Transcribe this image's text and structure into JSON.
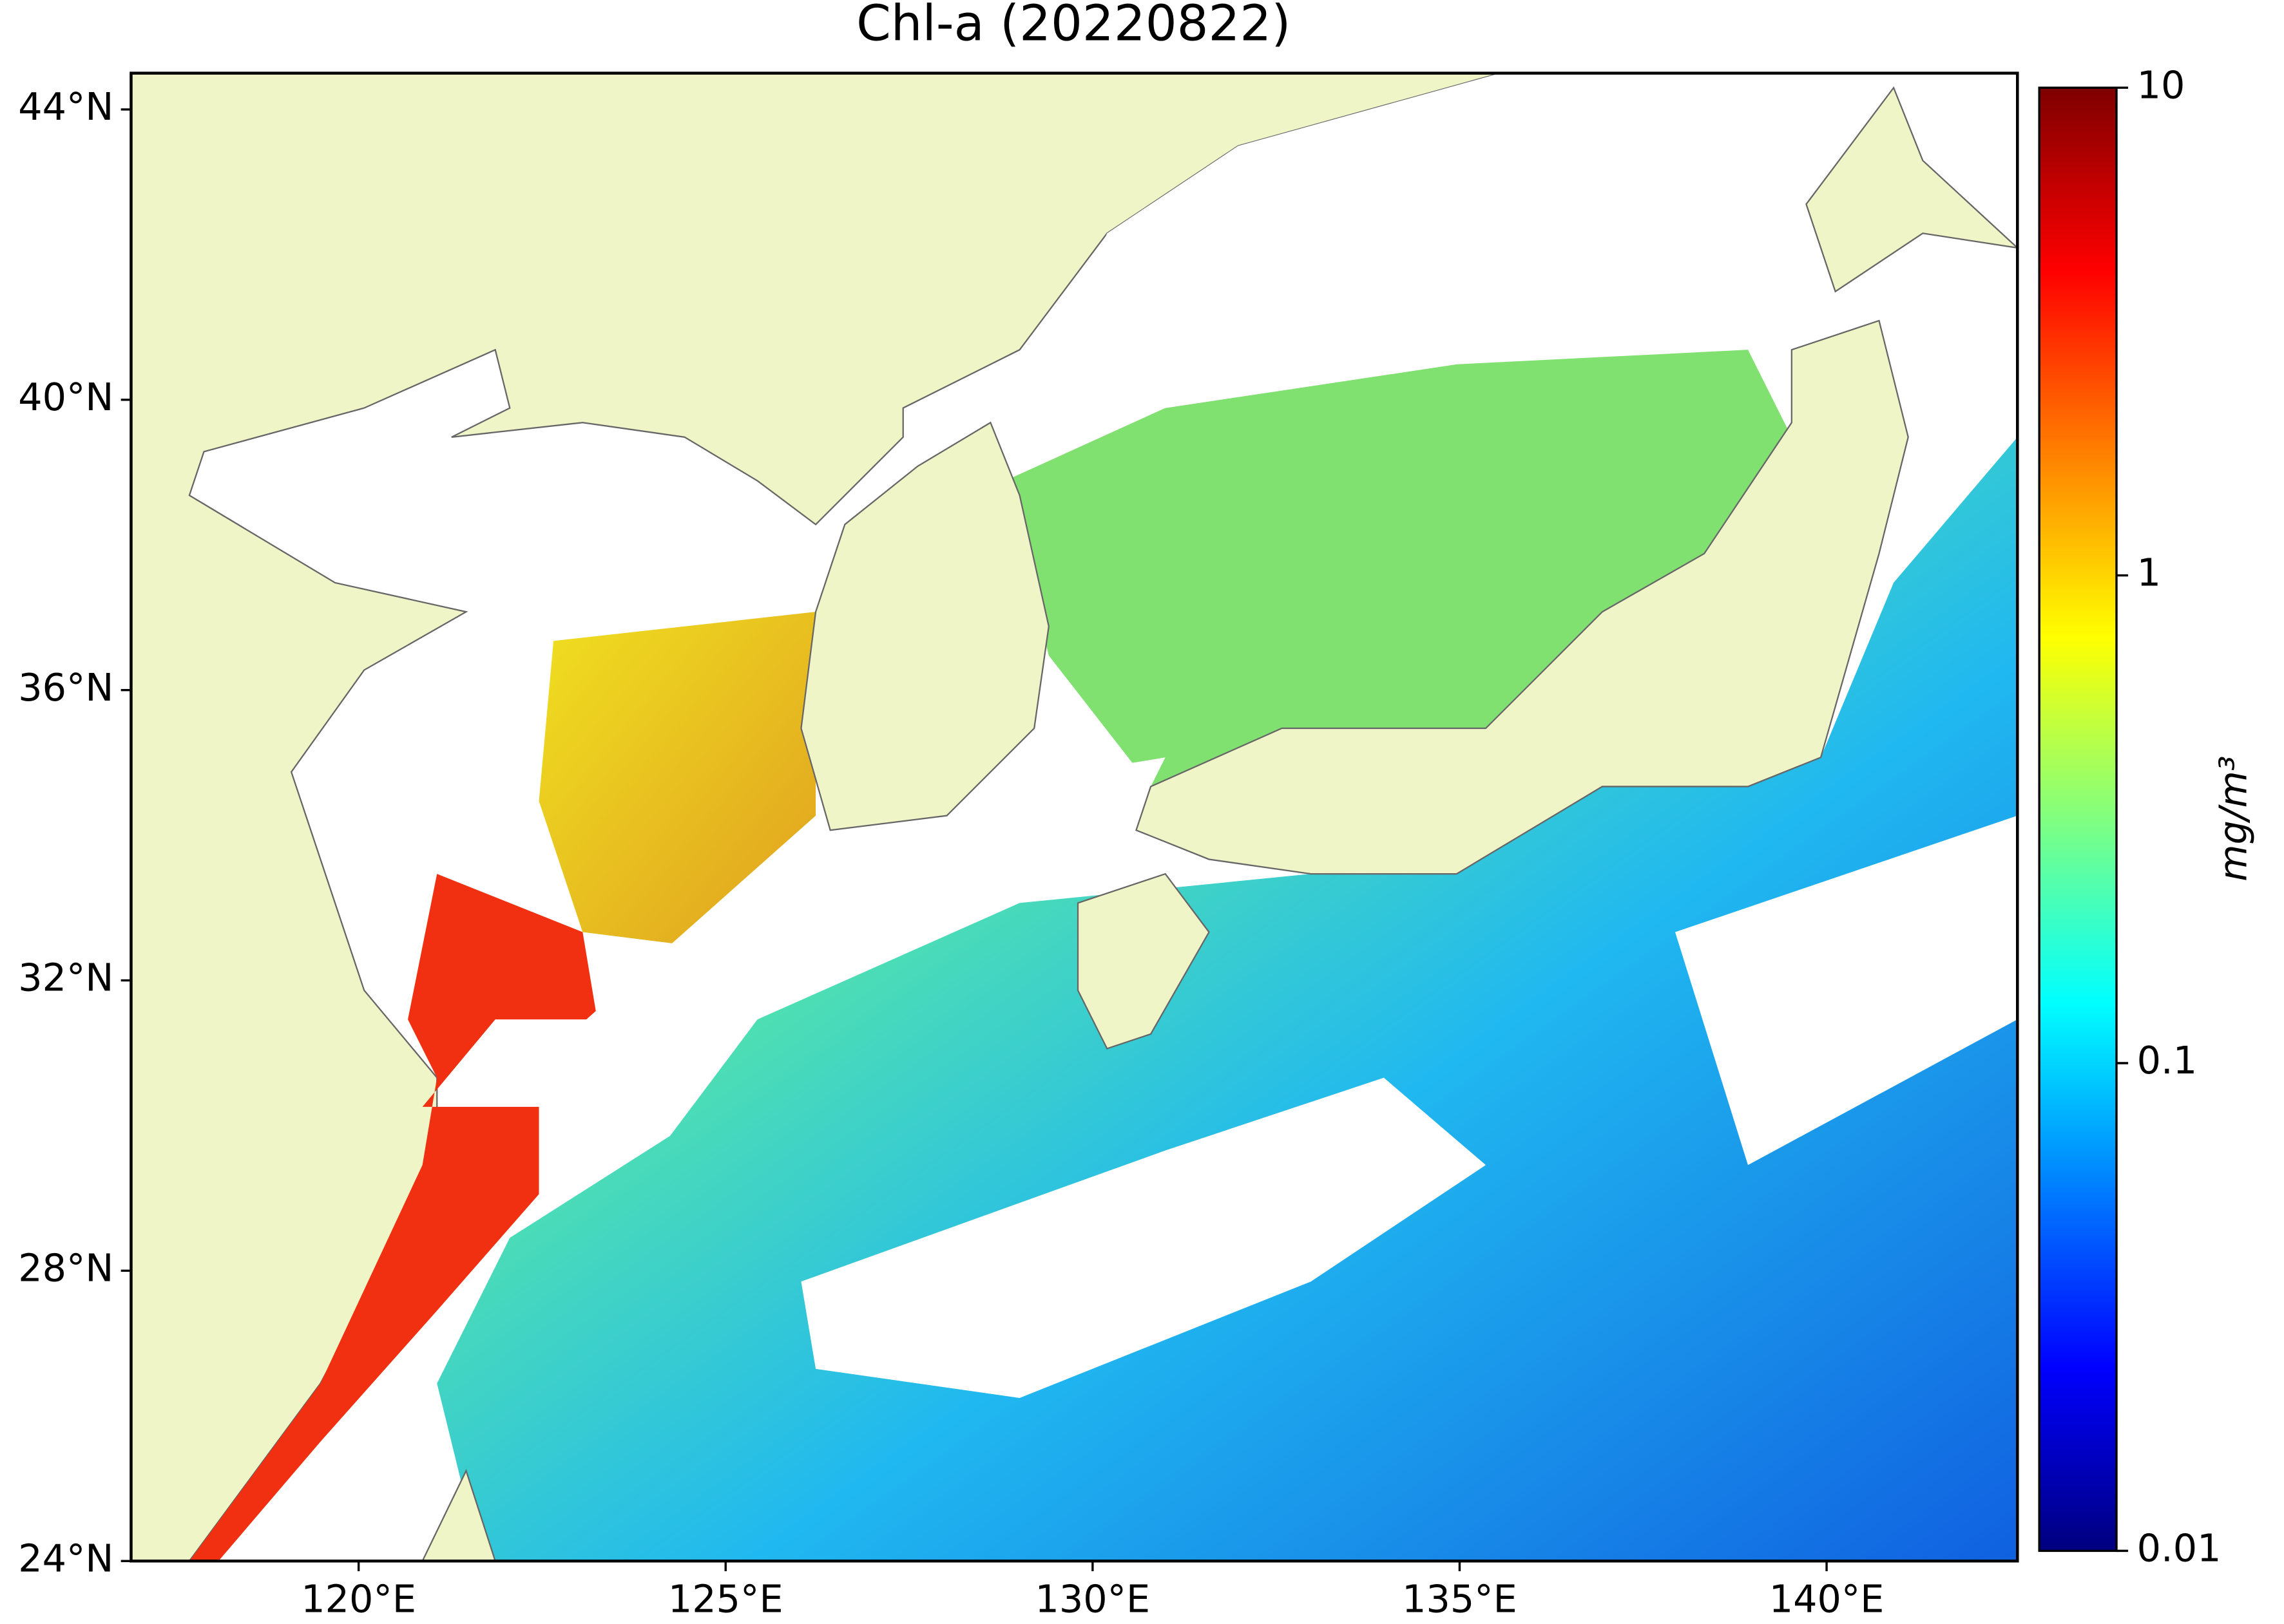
{
  "chart_data": {
    "type": "map",
    "title": "Chl-a (20220822)",
    "xlim": [
      116.9,
      142.6
    ],
    "ylim": [
      24,
      44.5
    ],
    "xticks": [
      {
        "value": 120,
        "label": "120°E"
      },
      {
        "value": 125,
        "label": "125°E"
      },
      {
        "value": 130,
        "label": "130°E"
      },
      {
        "value": 135,
        "label": "135°E"
      },
      {
        "value": 140,
        "label": "140°E"
      }
    ],
    "yticks": [
      {
        "value": 24,
        "label": "24°N"
      },
      {
        "value": 28,
        "label": "28°N"
      },
      {
        "value": 32,
        "label": "32°N"
      },
      {
        "value": 36,
        "label": "36°N"
      },
      {
        "value": 40,
        "label": "40°N"
      },
      {
        "value": 44,
        "label": "44°N"
      }
    ],
    "colorbar": {
      "label": "mg/m³",
      "scale": "log",
      "lim": [
        0.01,
        10
      ],
      "ticks": [
        0.01,
        0.1,
        1,
        10
      ],
      "colormap": [
        "#00007f",
        "#0000ff",
        "#0080ff",
        "#00ffff",
        "#80ff80",
        "#ffff00",
        "#ff8000",
        "#ff0000",
        "#7f0000"
      ]
    }
  }
}
